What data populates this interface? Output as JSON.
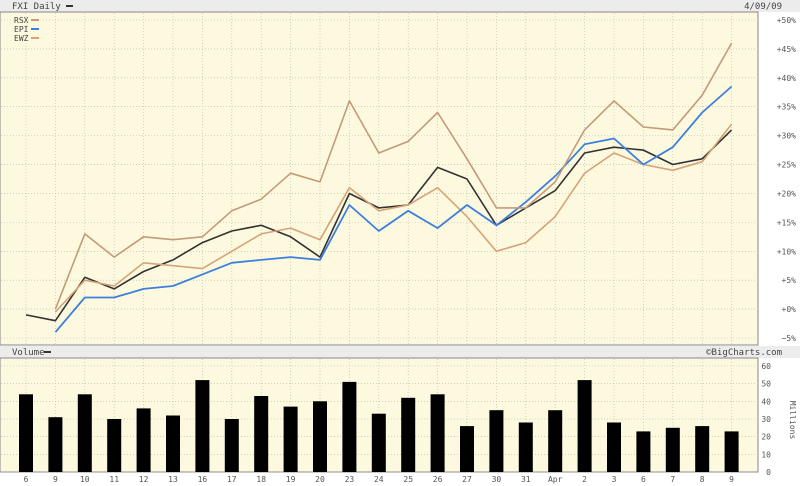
{
  "header": {
    "title": "FXI Daily",
    "date": "4/09/09"
  },
  "volume_panel": {
    "title": "Volume",
    "credit": "©BigCharts.com",
    "unit_label": "Millions"
  },
  "colors": {
    "background": "#fcf9df",
    "panel_border": "#888888",
    "grid": "#b8b8a8",
    "header_bar": "#ececec",
    "RSX": "#c49a79",
    "EPI": "#3d7fdc",
    "EWZ": "#d7a378",
    "FXI": "#333333",
    "volume_bar": "#000000"
  },
  "chart_data": [
    {
      "type": "line",
      "title": "FXI Daily",
      "x": [
        "6",
        "9",
        "10",
        "11",
        "12",
        "13",
        "16",
        "17",
        "18",
        "19",
        "20",
        "23",
        "24",
        "25",
        "26",
        "27",
        "30",
        "31",
        "Apr",
        "2",
        "3",
        "6",
        "7",
        "8",
        "9"
      ],
      "ylim": [
        -5,
        50
      ],
      "yticks": [
        -5,
        0,
        5,
        10,
        15,
        20,
        25,
        30,
        35,
        40,
        45,
        50
      ],
      "ytick_labels": [
        "−5%",
        "+0%",
        "+5%",
        "+10%",
        "+15%",
        "+20%",
        "+25%",
        "+30%",
        "+35%",
        "+40%",
        "+45%",
        "+50%"
      ],
      "grid": true,
      "legend": "top-left",
      "series": [
        {
          "name": "RSX",
          "values": [
            null,
            0,
            13,
            9,
            12.5,
            12,
            12.5,
            17,
            19,
            23.5,
            22,
            36,
            27,
            29,
            34,
            26,
            17.5,
            17.5,
            22,
            31,
            36,
            31.5,
            31,
            37,
            46
          ]
        },
        {
          "name": "EPI",
          "values": [
            null,
            -4,
            2,
            2,
            3.5,
            4,
            6,
            8,
            8.5,
            9,
            8.5,
            18,
            13.5,
            17,
            14,
            18,
            14.5,
            18.5,
            23,
            28.5,
            29.5,
            25,
            28,
            34,
            38.5
          ]
        },
        {
          "name": "EWZ",
          "values": [
            null,
            -0.5,
            5,
            4,
            8,
            7.5,
            7,
            10,
            13,
            14,
            12,
            21,
            17,
            18,
            21,
            16,
            10,
            11.5,
            16,
            23.5,
            27,
            25,
            24,
            25.5,
            32
          ]
        },
        {
          "name": null,
          "values": [
            -1,
            -2,
            5.5,
            3.5,
            6.5,
            8.5,
            11.5,
            13.5,
            14.5,
            12.5,
            9,
            20,
            17.5,
            18,
            24.5,
            22.5,
            14.5,
            17.5,
            20.5,
            27,
            28,
            27.5,
            25,
            26,
            31
          ]
        }
      ]
    },
    {
      "type": "bar",
      "title": "Volume",
      "categories": [
        "6",
        "9",
        "10",
        "11",
        "12",
        "13",
        "16",
        "17",
        "18",
        "19",
        "20",
        "23",
        "24",
        "25",
        "26",
        "27",
        "30",
        "31",
        "Apr",
        "2",
        "3",
        "6",
        "7",
        "8",
        "9"
      ],
      "values": [
        44,
        31,
        44,
        30,
        36,
        32,
        52,
        30,
        43,
        37,
        40,
        51,
        33,
        42,
        44,
        26,
        35,
        28,
        35,
        52,
        28,
        23,
        25,
        26,
        23
      ],
      "ylabel": "Millions",
      "ylim": [
        0,
        60
      ],
      "yticks": [
        0,
        10,
        20,
        30,
        40,
        50,
        60
      ],
      "grid": true
    }
  ]
}
